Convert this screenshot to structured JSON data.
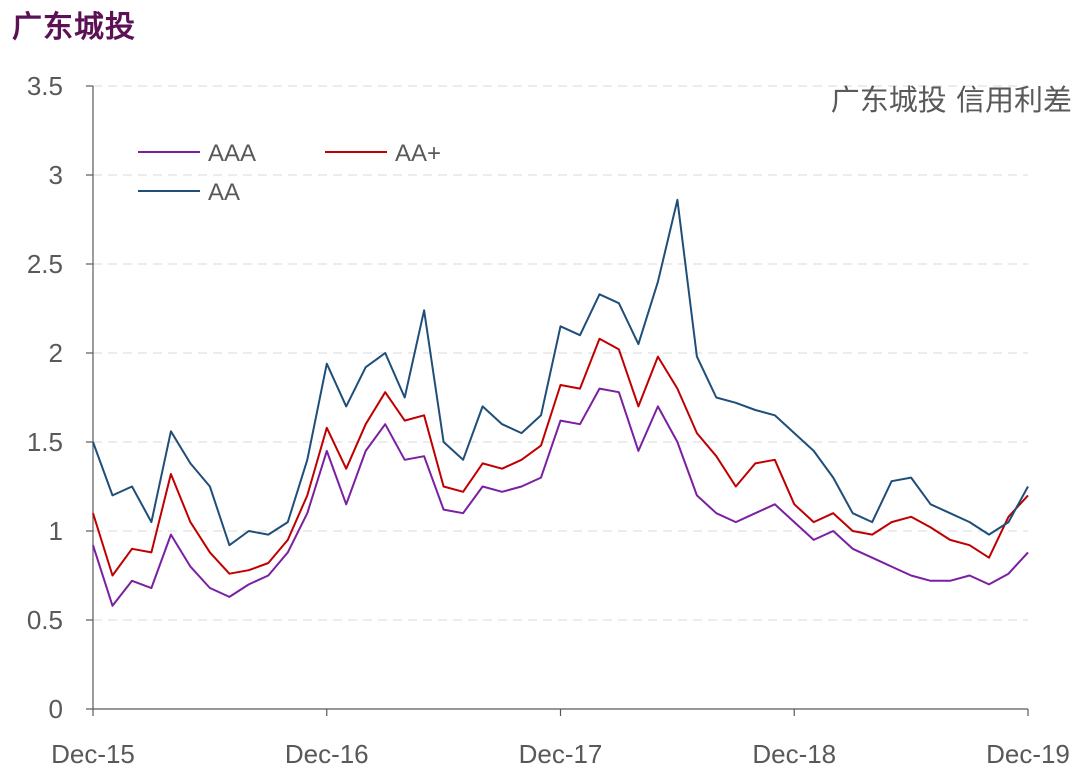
{
  "header": {
    "title": "广东城投"
  },
  "chart_data": {
    "type": "line",
    "title": "广东城投 信用利差",
    "xlabel": "",
    "ylabel": "",
    "x_ticks": [
      "Dec-15",
      "Dec-16",
      "Dec-17",
      "Dec-18",
      "Dec-19"
    ],
    "x_range": [
      "2015-12",
      "2019-12"
    ],
    "ylim": [
      0,
      3.5
    ],
    "y_ticks": [
      "0",
      "0.5",
      "1",
      "1.5",
      "2",
      "2.5",
      "3",
      "3.5"
    ],
    "grid": "horizontal dashed",
    "legend_position": "top-left",
    "series": [
      {
        "name": "AAA",
        "color": "#7b1fa2",
        "x": [
          "2015-12",
          "2016-01",
          "2016-02",
          "2016-03",
          "2016-04",
          "2016-05",
          "2016-06",
          "2016-07",
          "2016-08",
          "2016-09",
          "2016-10",
          "2016-11",
          "2016-12",
          "2017-01",
          "2017-02",
          "2017-03",
          "2017-04",
          "2017-05",
          "2017-06",
          "2017-07",
          "2017-08",
          "2017-09",
          "2017-10",
          "2017-11",
          "2017-12",
          "2018-01",
          "2018-02",
          "2018-03",
          "2018-04",
          "2018-05",
          "2018-06",
          "2018-07",
          "2018-08",
          "2018-09",
          "2018-10",
          "2018-11",
          "2018-12",
          "2019-01",
          "2019-02",
          "2019-03",
          "2019-04",
          "2019-05",
          "2019-06",
          "2019-07",
          "2019-08",
          "2019-09",
          "2019-10",
          "2019-11",
          "2019-12"
        ],
        "values": [
          0.92,
          0.58,
          0.72,
          0.68,
          0.98,
          0.8,
          0.68,
          0.63,
          0.7,
          0.75,
          0.88,
          1.1,
          1.45,
          1.15,
          1.45,
          1.6,
          1.4,
          1.42,
          1.12,
          1.1,
          1.25,
          1.22,
          1.25,
          1.3,
          1.62,
          1.6,
          1.8,
          1.78,
          1.45,
          1.7,
          1.5,
          1.2,
          1.1,
          1.05,
          1.1,
          1.15,
          1.05,
          0.95,
          1.0,
          0.9,
          0.85,
          0.8,
          0.75,
          0.72,
          0.72,
          0.75,
          0.7,
          0.76,
          0.88
        ]
      },
      {
        "name": "AA+",
        "color": "#c00000",
        "x": [
          "2015-12",
          "2016-01",
          "2016-02",
          "2016-03",
          "2016-04",
          "2016-05",
          "2016-06",
          "2016-07",
          "2016-08",
          "2016-09",
          "2016-10",
          "2016-11",
          "2016-12",
          "2017-01",
          "2017-02",
          "2017-03",
          "2017-04",
          "2017-05",
          "2017-06",
          "2017-07",
          "2017-08",
          "2017-09",
          "2017-10",
          "2017-11",
          "2017-12",
          "2018-01",
          "2018-02",
          "2018-03",
          "2018-04",
          "2018-05",
          "2018-06",
          "2018-07",
          "2018-08",
          "2018-09",
          "2018-10",
          "2018-11",
          "2018-12",
          "2019-01",
          "2019-02",
          "2019-03",
          "2019-04",
          "2019-05",
          "2019-06",
          "2019-07",
          "2019-08",
          "2019-09",
          "2019-10",
          "2019-11",
          "2019-12"
        ],
        "values": [
          1.1,
          0.75,
          0.9,
          0.88,
          1.32,
          1.05,
          0.88,
          0.76,
          0.78,
          0.82,
          0.95,
          1.2,
          1.58,
          1.35,
          1.6,
          1.78,
          1.62,
          1.65,
          1.25,
          1.22,
          1.38,
          1.35,
          1.4,
          1.48,
          1.82,
          1.8,
          2.08,
          2.02,
          1.7,
          1.98,
          1.8,
          1.55,
          1.42,
          1.25,
          1.38,
          1.4,
          1.15,
          1.05,
          1.1,
          1.0,
          0.98,
          1.05,
          1.08,
          1.02,
          0.95,
          0.92,
          0.85,
          1.08,
          1.2
        ]
      },
      {
        "name": "AA",
        "color": "#1f4e79",
        "x": [
          "2015-12",
          "2016-01",
          "2016-02",
          "2016-03",
          "2016-04",
          "2016-05",
          "2016-06",
          "2016-07",
          "2016-08",
          "2016-09",
          "2016-10",
          "2016-11",
          "2016-12",
          "2017-01",
          "2017-02",
          "2017-03",
          "2017-04",
          "2017-05",
          "2017-06",
          "2017-07",
          "2017-08",
          "2017-09",
          "2017-10",
          "2017-11",
          "2017-12",
          "2018-01",
          "2018-02",
          "2018-03",
          "2018-04",
          "2018-05",
          "2018-06",
          "2018-07",
          "2018-08",
          "2018-09",
          "2018-10",
          "2018-11",
          "2018-12",
          "2019-01",
          "2019-02",
          "2019-03",
          "2019-04",
          "2019-05",
          "2019-06",
          "2019-07",
          "2019-08",
          "2019-09",
          "2019-10",
          "2019-11",
          "2019-12"
        ],
        "values": [
          1.5,
          1.2,
          1.25,
          1.05,
          1.56,
          1.38,
          1.25,
          0.92,
          1.0,
          0.98,
          1.05,
          1.4,
          1.94,
          1.7,
          1.92,
          2.0,
          1.75,
          2.24,
          1.5,
          1.4,
          1.7,
          1.6,
          1.55,
          1.65,
          2.15,
          2.1,
          2.33,
          2.28,
          2.05,
          2.4,
          2.86,
          1.98,
          1.75,
          1.72,
          1.68,
          1.65,
          1.55,
          1.45,
          1.3,
          1.1,
          1.05,
          1.28,
          1.3,
          1.15,
          1.1,
          1.05,
          0.98,
          1.05,
          1.25
        ]
      }
    ]
  }
}
